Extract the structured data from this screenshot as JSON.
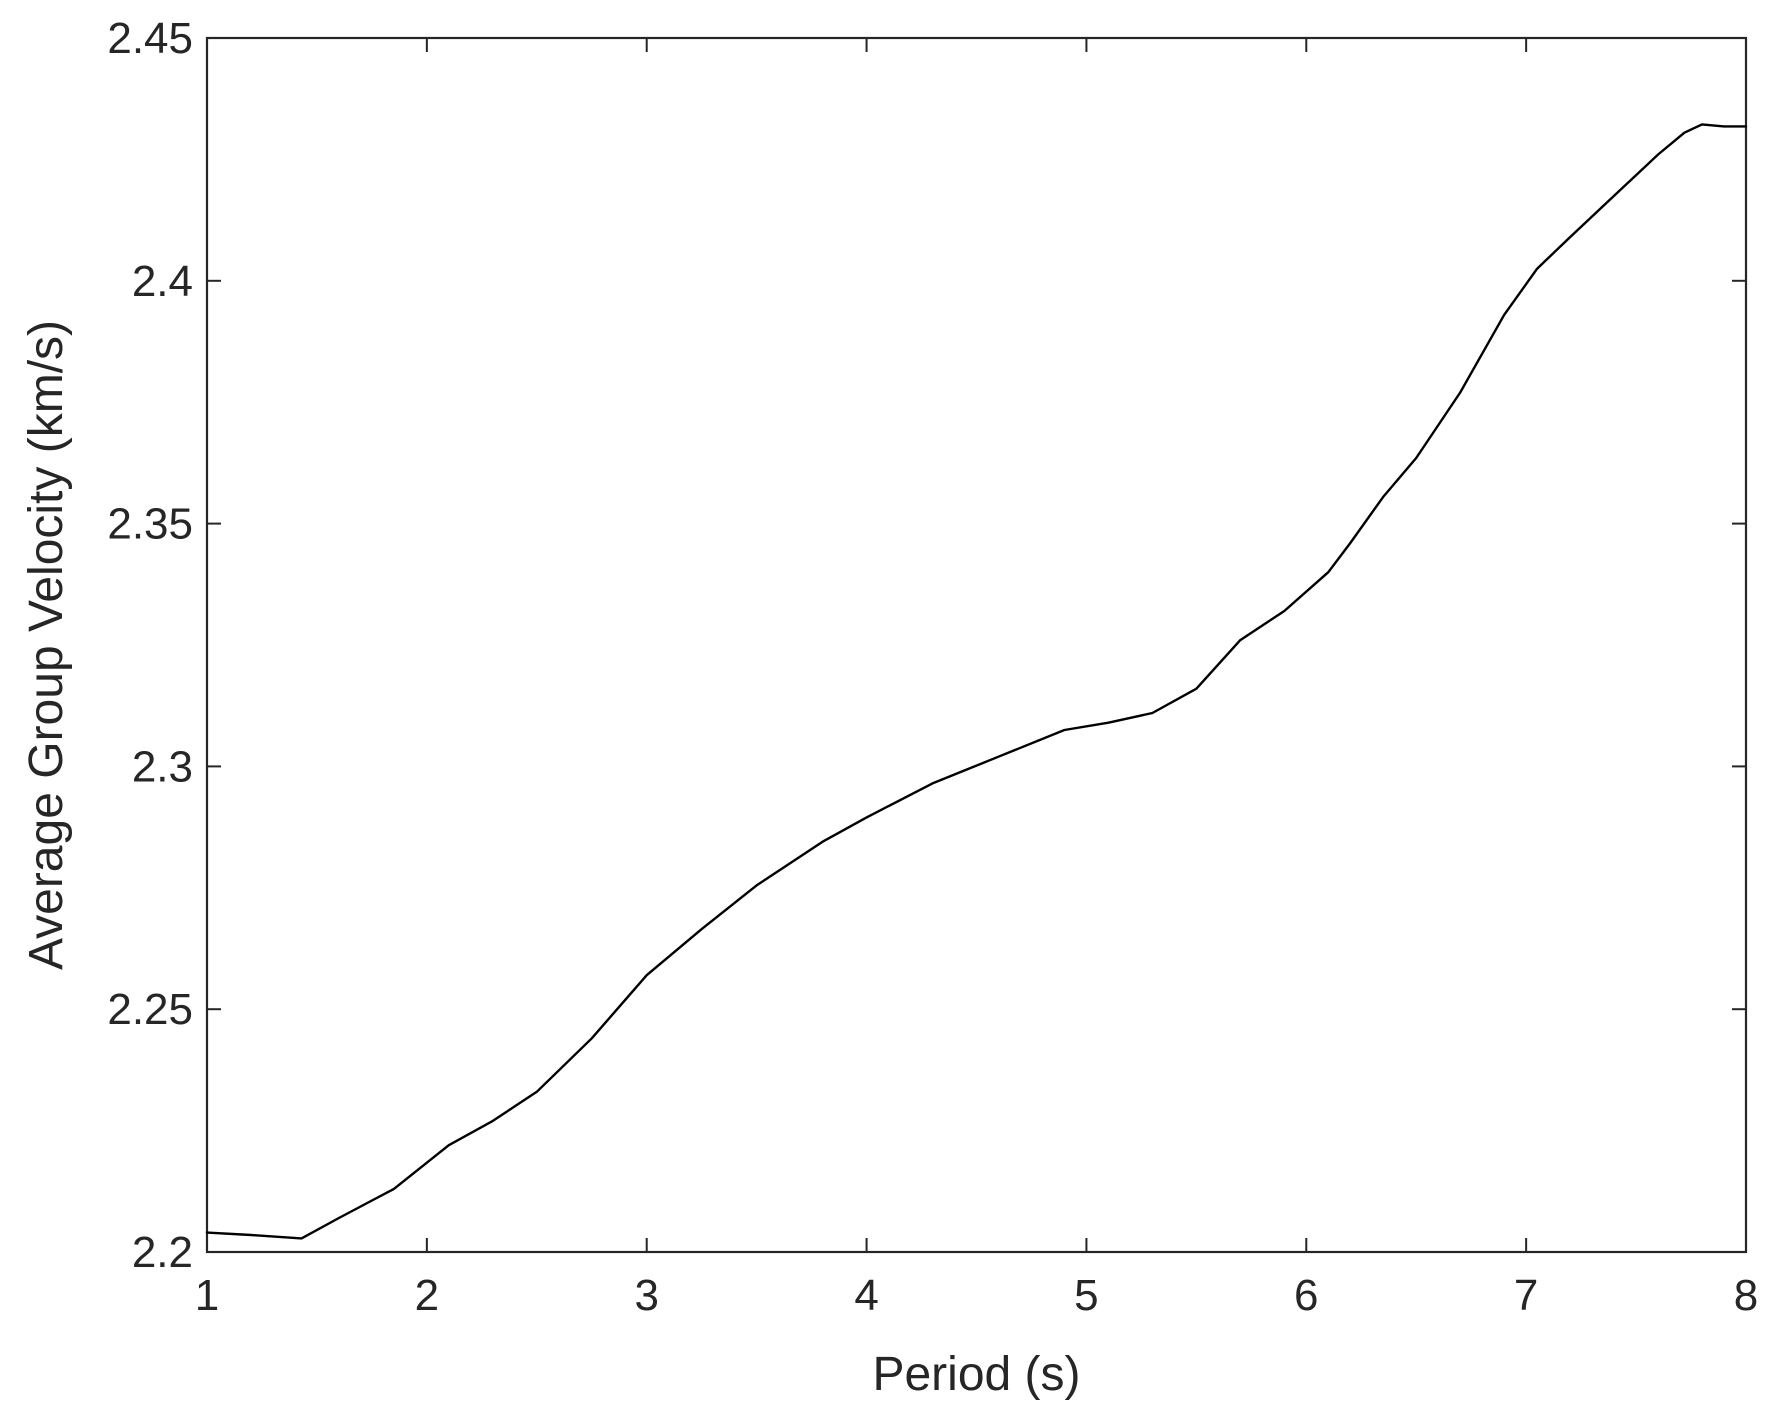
{
  "chart_data": {
    "type": "line",
    "title": "",
    "xlabel": "Period (s)",
    "ylabel": "Average Group Velocity (km/s)",
    "xlim": [
      1,
      8
    ],
    "ylim": [
      2.2,
      2.45
    ],
    "xticks": [
      1,
      2,
      3,
      4,
      5,
      6,
      7,
      8
    ],
    "yticks": [
      2.2,
      2.25,
      2.3,
      2.35,
      2.4,
      2.45
    ],
    "xtick_labels": [
      "1",
      "2",
      "3",
      "4",
      "5",
      "6",
      "7",
      "8"
    ],
    "ytick_labels": [
      "2.2",
      "2.25",
      "2.3",
      "2.35",
      "2.4",
      "2.45"
    ],
    "grid": false,
    "line_color": "#000000",
    "series": [
      {
        "x": [
          1.0,
          1.2,
          1.43,
          1.6,
          1.85,
          2.1,
          2.3,
          2.5,
          2.75,
          3.0,
          3.25,
          3.5,
          3.8,
          4.0,
          4.3,
          4.6,
          4.9,
          5.1,
          5.3,
          5.5,
          5.7,
          5.9,
          6.1,
          6.2,
          6.35,
          6.5,
          6.7,
          6.9,
          7.05,
          7.2,
          7.4,
          7.6,
          7.72,
          7.8,
          7.9,
          8.0
        ],
        "y": [
          2.204,
          2.2035,
          2.2028,
          2.207,
          2.213,
          2.222,
          2.227,
          2.233,
          2.244,
          2.257,
          2.2665,
          2.2755,
          2.2845,
          2.2895,
          2.2965,
          2.302,
          2.3075,
          2.309,
          2.311,
          2.316,
          2.326,
          2.332,
          2.34,
          2.346,
          2.3555,
          2.3635,
          2.377,
          2.393,
          2.4025,
          2.409,
          2.4175,
          2.426,
          2.4305,
          2.4322,
          2.4318,
          2.4318
        ]
      }
    ]
  }
}
